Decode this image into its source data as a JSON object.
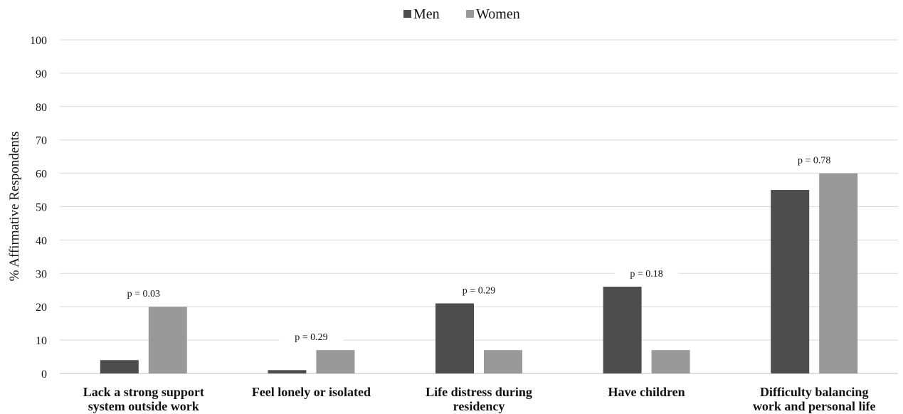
{
  "chart_data": {
    "type": "bar",
    "ylabel": "% Affirmative Respondents",
    "ylim": [
      0,
      100
    ],
    "yticks": [
      "0",
      "10",
      "20",
      "30",
      "40",
      "50",
      "60",
      "70",
      "80",
      "90",
      "100"
    ],
    "grid": true,
    "legend_position": "top-center",
    "categories": [
      [
        "Lack a strong support",
        "system outside work"
      ],
      [
        "Feel lonely or isolated"
      ],
      [
        "Life distress during",
        "residency"
      ],
      [
        "Have children"
      ],
      [
        "Difficulty balancing",
        "work and personal life"
      ]
    ],
    "series": [
      {
        "name": "Men",
        "color": "#4d4d4d",
        "values": [
          4,
          1,
          21,
          26,
          55
        ]
      },
      {
        "name": "Women",
        "color": "#999999",
        "values": [
          20,
          7,
          7,
          7,
          60
        ]
      }
    ],
    "annotations": [
      "p = 0.03",
      "p = 0.29",
      "p = 0.29",
      "p = 0.18",
      "p = 0.78"
    ]
  }
}
